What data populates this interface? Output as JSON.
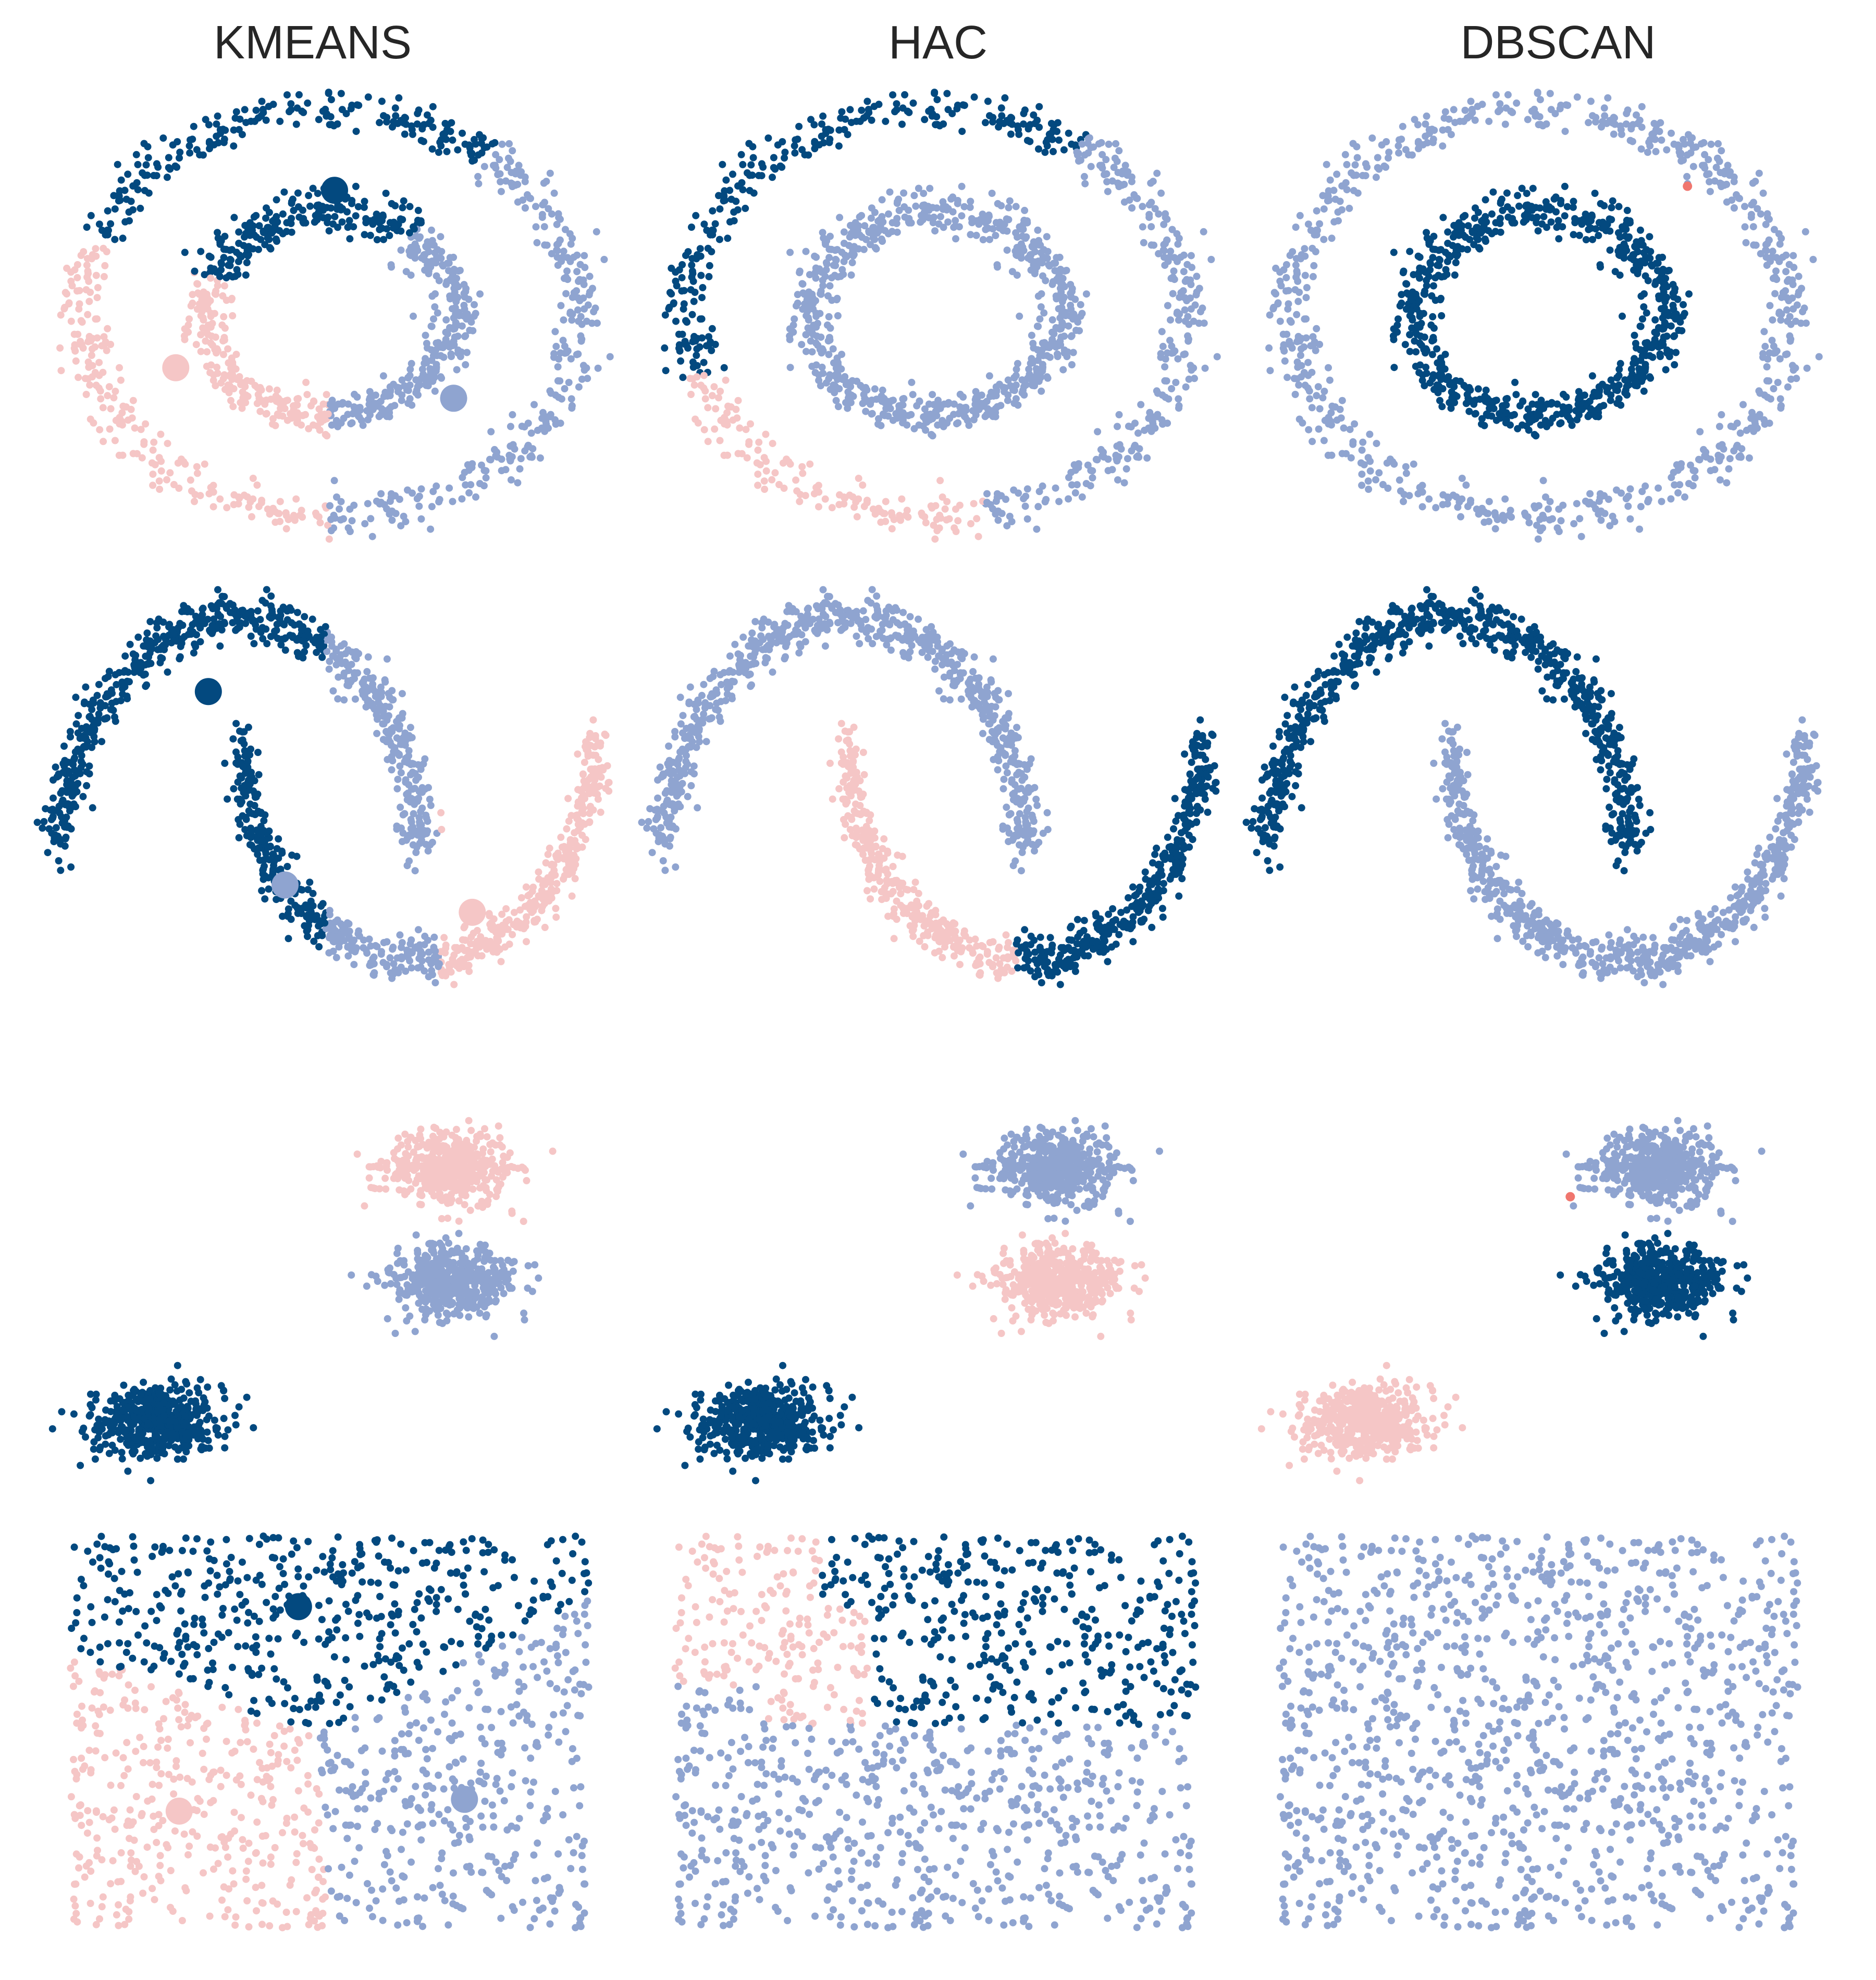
{
  "figure": {
    "columns": [
      "KMEANS",
      "HAC",
      "DBSCAN"
    ],
    "rows": [
      "circles",
      "moons",
      "blobs",
      "uniform"
    ]
  },
  "colors": {
    "cluster_dark": "#03497f",
    "cluster_light": "#8fa4d0",
    "cluster_pink": "#f5c6c6",
    "noise": "#f0766e",
    "centroid_size": "large"
  },
  "chart_data": [
    {
      "type": "scatter",
      "column": "KMEANS",
      "row": "circles",
      "title": "KMEANS",
      "dataset": {
        "shape": "concentric-circles",
        "outer_radius": 1.0,
        "inner_radius": 0.5,
        "xlim": [
          -1.15,
          1.15
        ],
        "ylim": [
          -1.15,
          1.15
        ]
      },
      "clusters": [
        {
          "color": "cluster_dark",
          "rule": "angle",
          "from_deg": 50,
          "to_deg": 160,
          "centroid": [
            0.02,
            0.6
          ]
        },
        {
          "color": "cluster_pink",
          "rule": "angle",
          "from_deg": 160,
          "to_deg": 270,
          "centroid": [
            -0.62,
            -0.27
          ]
        },
        {
          "color": "cluster_light",
          "rule": "angle",
          "from_deg": 270,
          "to_deg": 410,
          "centroid": [
            0.5,
            -0.42
          ]
        }
      ]
    },
    {
      "type": "scatter",
      "column": "HAC",
      "row": "circles",
      "title": "HAC",
      "dataset": {
        "shape": "concentric-circles",
        "outer_radius": 1.0,
        "inner_radius": 0.5,
        "xlim": [
          -1.15,
          1.15
        ],
        "ylim": [
          -1.15,
          1.15
        ]
      },
      "clusters": [
        {
          "color": "cluster_dark",
          "rule": "outer-angle",
          "from_deg": 55,
          "to_deg": 198
        },
        {
          "color": "cluster_pink",
          "rule": "outer-angle",
          "from_deg": 198,
          "to_deg": 282
        },
        {
          "color": "cluster_light",
          "rule": "rest"
        }
      ]
    },
    {
      "type": "scatter",
      "column": "DBSCAN",
      "row": "circles",
      "title": "DBSCAN",
      "dataset": {
        "shape": "concentric-circles",
        "outer_radius": 1.0,
        "inner_radius": 0.5,
        "xlim": [
          -1.15,
          1.15
        ],
        "ylim": [
          -1.15,
          1.15
        ]
      },
      "clusters": [
        {
          "color": "cluster_dark",
          "rule": "inner-ring"
        },
        {
          "color": "cluster_light",
          "rule": "outer-ring"
        }
      ],
      "noise_points": [
        [
          0.6,
          0.62
        ]
      ]
    },
    {
      "type": "scatter",
      "column": "KMEANS",
      "row": "moons",
      "title": "",
      "dataset": {
        "shape": "two-moons",
        "xlim": [
          -1.1,
          2.1
        ],
        "ylim": [
          -0.7,
          1.2
        ]
      },
      "clusters": [
        {
          "color": "cluster_dark",
          "rule": "x-range",
          "from": -1.1,
          "to": 0.48,
          "centroid": [
            -0.18,
            0.68
          ]
        },
        {
          "color": "cluster_light",
          "rule": "x-range",
          "from": 0.48,
          "to": 1.12,
          "centroid": [
            0.25,
            -0.17
          ]
        },
        {
          "color": "cluster_pink",
          "rule": "x-range",
          "from": 1.12,
          "to": 2.1,
          "centroid": [
            1.3,
            -0.29
          ]
        }
      ]
    },
    {
      "type": "scatter",
      "column": "HAC",
      "row": "moons",
      "title": "",
      "dataset": {
        "shape": "two-moons",
        "xlim": [
          -1.1,
          2.1
        ],
        "ylim": [
          -0.7,
          1.2
        ]
      },
      "clusters": [
        {
          "color": "cluster_light",
          "rule": "moon",
          "moon": "upper"
        },
        {
          "color": "cluster_pink",
          "rule": "lower-x-range",
          "from": -0.1,
          "to": 0.95
        },
        {
          "color": "cluster_dark",
          "rule": "lower-x-range",
          "from": 0.95,
          "to": 2.1
        }
      ]
    },
    {
      "type": "scatter",
      "column": "DBSCAN",
      "row": "moons",
      "title": "",
      "dataset": {
        "shape": "two-moons",
        "xlim": [
          -1.1,
          2.1
        ],
        "ylim": [
          -0.7,
          1.2
        ]
      },
      "clusters": [
        {
          "color": "cluster_dark",
          "rule": "moon",
          "moon": "upper"
        },
        {
          "color": "cluster_light",
          "rule": "moon",
          "moon": "lower"
        }
      ]
    },
    {
      "type": "scatter",
      "column": "KMEANS",
      "row": "blobs",
      "title": "",
      "dataset": {
        "shape": "three-blobs",
        "xlim": [
          -12,
          6
        ],
        "ylim": [
          -6,
          9
        ],
        "blobs": [
          {
            "center": [
              -8.5,
              -3.8
            ]
          },
          {
            "center": [
              0.8,
              5.0
            ]
          },
          {
            "center": [
              0.9,
              1.1
            ]
          }
        ]
      },
      "clusters": [
        {
          "color": "cluster_dark",
          "rule": "blob",
          "blob": 0
        },
        {
          "color": "cluster_pink",
          "rule": "blob",
          "blob": 1
        },
        {
          "color": "cluster_light",
          "rule": "blob",
          "blob": 2
        }
      ]
    },
    {
      "type": "scatter",
      "column": "HAC",
      "row": "blobs",
      "title": "",
      "dataset": {
        "shape": "three-blobs",
        "xlim": [
          -12,
          6
        ],
        "ylim": [
          -6,
          9
        ],
        "blobs": [
          {
            "center": [
              -8.5,
              -3.8
            ]
          },
          {
            "center": [
              0.8,
              5.0
            ]
          },
          {
            "center": [
              0.9,
              1.1
            ]
          }
        ]
      },
      "clusters": [
        {
          "color": "cluster_dark",
          "rule": "blob",
          "blob": 0
        },
        {
          "color": "cluster_light",
          "rule": "blob",
          "blob": 1
        },
        {
          "color": "cluster_pink",
          "rule": "blob",
          "blob": 2
        }
      ]
    },
    {
      "type": "scatter",
      "column": "DBSCAN",
      "row": "blobs",
      "title": "",
      "dataset": {
        "shape": "three-blobs",
        "xlim": [
          -12,
          6
        ],
        "ylim": [
          -6,
          9
        ],
        "blobs": [
          {
            "center": [
              -8.5,
              -3.8
            ]
          },
          {
            "center": [
              0.8,
              5.0
            ]
          },
          {
            "center": [
              0.9,
              1.1
            ]
          }
        ]
      },
      "clusters": [
        {
          "color": "cluster_pink",
          "rule": "blob",
          "blob": 0
        },
        {
          "color": "cluster_light",
          "rule": "blob",
          "blob": 1
        },
        {
          "color": "cluster_dark",
          "rule": "blob",
          "blob": 2
        }
      ],
      "noise_points": [
        [
          -2.0,
          4.0
        ]
      ]
    },
    {
      "type": "scatter",
      "column": "KMEANS",
      "row": "uniform",
      "title": "",
      "dataset": {
        "shape": "uniform-square",
        "xlim": [
          -0.05,
          1.05
        ],
        "ylim": [
          -0.05,
          1.05
        ]
      },
      "clusters": [
        {
          "color": "cluster_dark",
          "rule": "kmeans-uniform",
          "centroid": [
            0.44,
            0.82
          ]
        },
        {
          "color": "cluster_pink",
          "rule": "kmeans-uniform",
          "centroid": [
            0.21,
            0.3
          ]
        },
        {
          "color": "cluster_light",
          "rule": "kmeans-uniform",
          "centroid": [
            0.76,
            0.33
          ]
        }
      ]
    },
    {
      "type": "scatter",
      "column": "HAC",
      "row": "uniform",
      "title": "",
      "dataset": {
        "shape": "uniform-square",
        "xlim": [
          -0.05,
          1.05
        ],
        "ylim": [
          -0.05,
          1.05
        ]
      },
      "clusters": [
        {
          "color": "cluster_pink",
          "rule": "hac-uniform",
          "region": "upper-left"
        },
        {
          "color": "cluster_dark",
          "rule": "hac-uniform",
          "region": "upper-right"
        },
        {
          "color": "cluster_light",
          "rule": "hac-uniform",
          "region": "bottom"
        }
      ]
    },
    {
      "type": "scatter",
      "column": "DBSCAN",
      "row": "uniform",
      "title": "",
      "dataset": {
        "shape": "uniform-square",
        "xlim": [
          -0.05,
          1.05
        ],
        "ylim": [
          -0.05,
          1.05
        ]
      },
      "clusters": [
        {
          "color": "cluster_light",
          "rule": "rest"
        }
      ]
    }
  ]
}
